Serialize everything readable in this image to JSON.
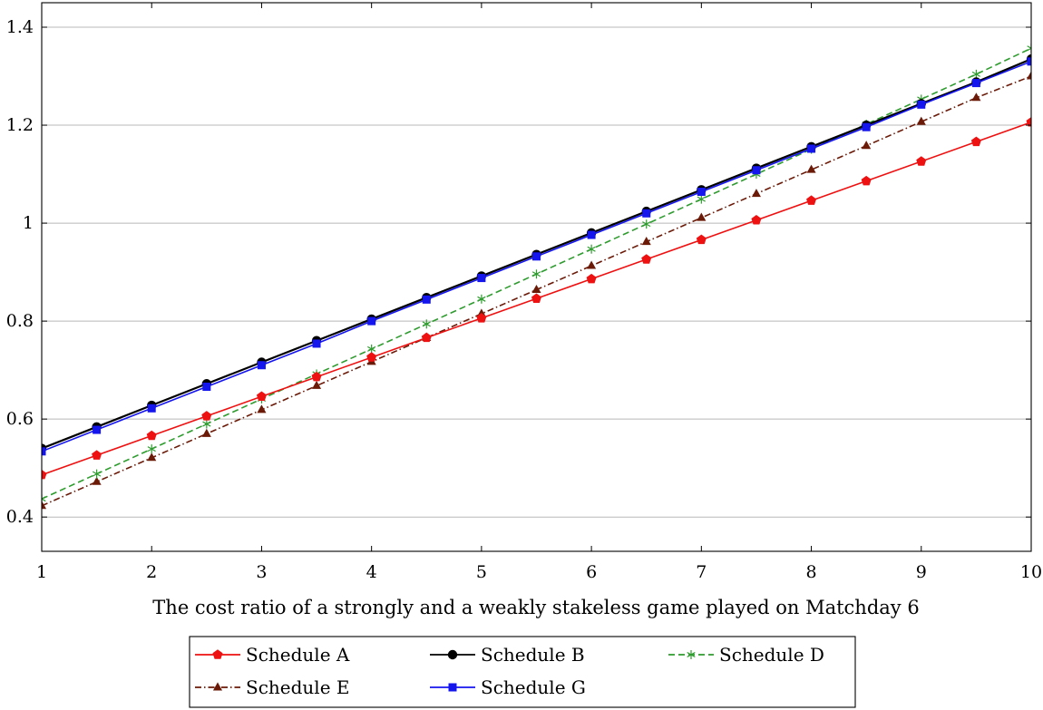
{
  "chart_data": {
    "type": "line",
    "title": "",
    "xlabel": "The cost ratio of a strongly and a weakly stakeless game played on Matchday 6",
    "ylabel": "",
    "xlim": [
      1,
      10
    ],
    "ylim": [
      0.33,
      1.45
    ],
    "x_ticks": [
      "1",
      "2",
      "3",
      "4",
      "5",
      "6",
      "7",
      "8",
      "9",
      "10"
    ],
    "y_ticks": [
      "0.4",
      "0.6",
      "0.8",
      "1",
      "1.2",
      "1.4"
    ],
    "grid": "horizontal",
    "legend_position": "bottom",
    "x": [
      1,
      1.5,
      2,
      2.5,
      3,
      3.5,
      4,
      4.5,
      5,
      5.5,
      6,
      6.5,
      7,
      7.5,
      8,
      8.5,
      9,
      9.5,
      10
    ],
    "series": [
      {
        "name": "Schedule A",
        "color": "#ee1111",
        "marker": "pentagon",
        "dash": "solid",
        "values": [
          0.486,
          0.526,
          0.566,
          0.606,
          0.646,
          0.686,
          0.726,
          0.766,
          0.806,
          0.846,
          0.886,
          0.926,
          0.966,
          1.006,
          1.046,
          1.086,
          1.126,
          1.166,
          1.206
        ]
      },
      {
        "name": "Schedule B",
        "color": "#000000",
        "marker": "circle",
        "dash": "solid",
        "values": [
          0.54,
          0.584,
          0.628,
          0.672,
          0.716,
          0.76,
          0.804,
          0.848,
          0.892,
          0.936,
          0.98,
          1.024,
          1.068,
          1.112,
          1.156,
          1.2,
          1.244,
          1.288,
          1.335
        ]
      },
      {
        "name": "Schedule D",
        "color": "#2e9c2e",
        "marker": "asterisk",
        "dash": "dashed",
        "values": [
          0.437,
          0.488,
          0.539,
          0.59,
          0.641,
          0.692,
          0.743,
          0.794,
          0.845,
          0.896,
          0.947,
          0.998,
          1.049,
          1.1,
          1.151,
          1.202,
          1.253,
          1.304,
          1.357
        ]
      },
      {
        "name": "Schedule E",
        "color": "#6b1a08",
        "marker": "triangle",
        "dash": "dashdot",
        "values": [
          0.423,
          0.472,
          0.521,
          0.57,
          0.619,
          0.668,
          0.717,
          0.766,
          0.815,
          0.864,
          0.913,
          0.962,
          1.011,
          1.06,
          1.109,
          1.158,
          1.207,
          1.256,
          1.3
        ]
      },
      {
        "name": "Schedule G",
        "color": "#1515ee",
        "marker": "square",
        "dash": "solid",
        "values": [
          0.534,
          0.578,
          0.622,
          0.666,
          0.71,
          0.754,
          0.8,
          0.844,
          0.888,
          0.932,
          0.976,
          1.02,
          1.064,
          1.108,
          1.152,
          1.196,
          1.242,
          1.286,
          1.33
        ]
      }
    ],
    "legend": {
      "rows": [
        [
          "Schedule A",
          "Schedule B",
          "Schedule D"
        ],
        [
          "Schedule E",
          "Schedule G"
        ]
      ]
    }
  }
}
